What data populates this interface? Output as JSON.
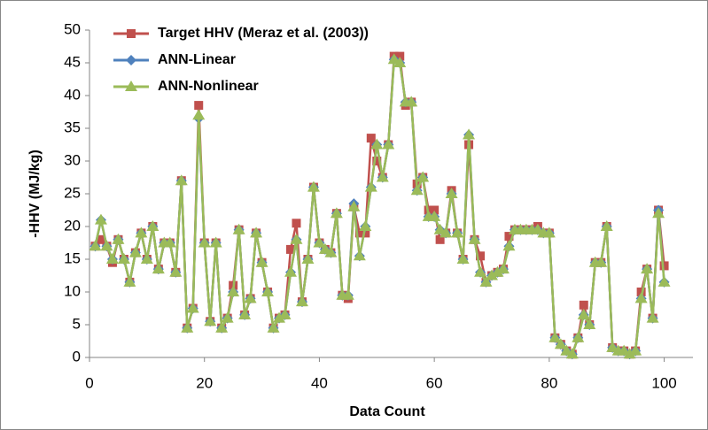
{
  "chart_data": {
    "type": "line",
    "x": [
      1,
      2,
      3,
      4,
      5,
      6,
      7,
      8,
      9,
      10,
      11,
      12,
      13,
      14,
      15,
      16,
      17,
      18,
      19,
      20,
      21,
      22,
      23,
      24,
      25,
      26,
      27,
      28,
      29,
      30,
      31,
      32,
      33,
      34,
      35,
      36,
      37,
      38,
      39,
      40,
      41,
      42,
      43,
      44,
      45,
      46,
      47,
      48,
      49,
      50,
      51,
      52,
      53,
      54,
      55,
      56,
      57,
      58,
      59,
      60,
      61,
      62,
      63,
      64,
      65,
      66,
      67,
      68,
      69,
      70,
      71,
      72,
      73,
      74,
      75,
      76,
      77,
      78,
      79,
      80,
      81,
      82,
      83,
      84,
      85,
      86,
      87,
      88,
      89,
      90,
      91,
      92,
      93,
      94,
      95,
      96,
      97,
      98,
      99,
      100
    ],
    "series": [
      {
        "name": "Target HHV (Meraz et al. (2003))",
        "color": "#c0504d",
        "marker": "square",
        "values": [
          17,
          18,
          17,
          14.5,
          18,
          15,
          11.5,
          16,
          19,
          15,
          20,
          13.5,
          17.5,
          17.5,
          13,
          27,
          4.5,
          7.5,
          38.5,
          17.5,
          5.5,
          17.5,
          4.5,
          6,
          11,
          19.5,
          6.5,
          9,
          19,
          14.5,
          10,
          4.5,
          6,
          6.5,
          16.5,
          20.5,
          8.5,
          15,
          26,
          17.5,
          16.5,
          16,
          22,
          9.5,
          9,
          23,
          19,
          19,
          33.5,
          30,
          27.5,
          32.5,
          46,
          46,
          38.5,
          39,
          26.5,
          27.5,
          22.5,
          22.5,
          18,
          19,
          25.5,
          19,
          15,
          32.5,
          18,
          15.5,
          11.5,
          12.5,
          13,
          13.5,
          18.5,
          19.5,
          19.5,
          19.5,
          19.5,
          20,
          19,
          19,
          3,
          2,
          1,
          0.5,
          3,
          8,
          5,
          14.5,
          14.5,
          20,
          1.5,
          1,
          1,
          0.5,
          1,
          10,
          13.5,
          6,
          22.5,
          14
        ]
      },
      {
        "name": "ANN-Linear",
        "color": "#4f81bd",
        "marker": "diamond",
        "values": [
          17,
          21,
          17,
          15,
          18,
          15,
          11.5,
          16,
          19,
          15,
          20,
          13.5,
          17.5,
          17.5,
          13,
          27,
          4.5,
          7.5,
          36.5,
          17.5,
          5.5,
          17.5,
          4.5,
          6,
          10,
          19.5,
          6.5,
          9,
          19,
          14.5,
          10,
          4.5,
          6,
          6.5,
          13,
          18,
          8.5,
          15,
          26,
          17.5,
          16.5,
          16,
          22,
          9.5,
          9.5,
          23.5,
          15.5,
          20,
          26,
          32.5,
          27.5,
          32.5,
          45.5,
          45,
          39,
          39,
          25.5,
          27.5,
          21.5,
          21.5,
          19.5,
          19,
          25,
          19,
          15,
          34,
          18,
          13,
          11.5,
          12.5,
          13,
          13.5,
          17,
          19.5,
          19.5,
          19.5,
          19.5,
          19.5,
          19,
          19,
          3,
          2,
          1,
          0.5,
          3,
          6.5,
          5,
          14.5,
          14.5,
          20,
          1.5,
          1,
          1,
          0.5,
          1,
          9,
          13.5,
          6,
          22.5,
          11.5
        ]
      },
      {
        "name": "ANN-Nonlinear",
        "color": "#9bbb59",
        "marker": "triangle",
        "values": [
          17,
          21,
          17,
          15,
          18,
          15,
          11.5,
          16,
          19,
          15,
          20,
          13.5,
          17.5,
          17.5,
          13,
          27,
          4.5,
          7.5,
          37,
          17.5,
          5.5,
          17.5,
          4.5,
          6,
          10,
          19.5,
          6.5,
          9,
          19,
          14.5,
          10,
          4.5,
          6,
          6.5,
          13,
          18,
          8.5,
          15,
          26,
          17.5,
          16.5,
          16,
          22,
          9.5,
          9.5,
          23,
          15.5,
          20,
          26,
          32.5,
          27.5,
          32.5,
          45.5,
          45,
          39,
          39,
          25.5,
          27.5,
          21.5,
          21.5,
          19.5,
          19,
          25,
          19,
          15,
          34,
          18,
          13,
          11.5,
          12.5,
          13,
          13.5,
          17,
          19.5,
          19.5,
          19.5,
          19.5,
          19.5,
          19,
          19,
          3,
          2,
          1,
          0.5,
          3,
          6.5,
          5,
          14.5,
          14.5,
          20,
          1.5,
          1,
          1,
          0.5,
          1,
          9,
          13.5,
          6,
          22,
          11.5
        ]
      }
    ],
    "xlabel": "Data Count",
    "ylabel": "-HHV (MJ/kg)",
    "xlim": [
      0,
      105
    ],
    "xticks": [
      0,
      20,
      40,
      60,
      80,
      100
    ],
    "ylim": [
      0,
      50
    ],
    "yticks": [
      0,
      5,
      10,
      15,
      20,
      25,
      30,
      35,
      40,
      45,
      50
    ],
    "legend": "top-left"
  }
}
